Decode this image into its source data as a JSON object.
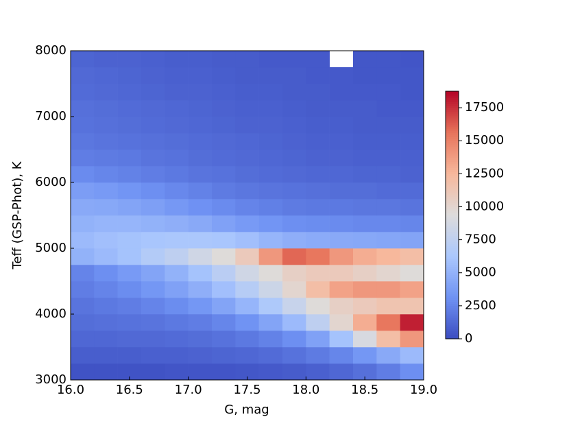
{
  "chart_data": {
    "type": "heatmap",
    "xlabel": "G, mag",
    "ylabel": "Teff (GSP-Phot), K",
    "x_bins": [
      16.0,
      16.2,
      16.4,
      16.6,
      16.8,
      17.0,
      17.2,
      17.4,
      17.6,
      17.8,
      18.0,
      18.2,
      18.4,
      18.6,
      18.8,
      19.0
    ],
    "y_bins": [
      3000,
      3250,
      3500,
      3750,
      4000,
      4250,
      4500,
      4750,
      5000,
      5250,
      5500,
      5750,
      6000,
      6250,
      6500,
      6750,
      7000,
      7250,
      7500,
      7750,
      8000
    ],
    "z": [
      [
        300,
        300,
        300,
        300,
        400,
        400,
        400,
        500,
        600,
        700,
        900,
        1200,
        1600,
        2200,
        3000
      ],
      [
        800,
        800,
        800,
        900,
        900,
        1000,
        1100,
        1200,
        1400,
        1700,
        2100,
        2600,
        3400,
        4500,
        5500
      ],
      [
        1200,
        1200,
        1300,
        1300,
        1400,
        1500,
        1700,
        2000,
        2400,
        3000,
        4000,
        6000,
        9000,
        12000,
        14000
      ],
      [
        1500,
        1600,
        1700,
        1800,
        2000,
        2200,
        2600,
        3200,
        4200,
        5500,
        7500,
        10000,
        13000,
        15500,
        18000
      ],
      [
        1800,
        2000,
        2200,
        2500,
        2900,
        3400,
        4200,
        5200,
        6500,
        8000,
        9500,
        10500,
        11000,
        11500,
        11500
      ],
      [
        2200,
        2500,
        2900,
        3400,
        4000,
        4800,
        5800,
        7000,
        8300,
        10000,
        12000,
        13500,
        14000,
        14000,
        13500
      ],
      [
        2500,
        3000,
        3600,
        4200,
        5000,
        6000,
        7200,
        8500,
        9500,
        10500,
        11000,
        11000,
        10500,
        10000,
        9500
      ],
      [
        5000,
        5500,
        6000,
        6800,
        7500,
        8500,
        9500,
        11000,
        14000,
        16000,
        15500,
        14000,
        13000,
        12500,
        12000
      ],
      [
        5500,
        5800,
        6000,
        6200,
        6300,
        6300,
        6200,
        5800,
        5200,
        4800,
        4600,
        4500,
        4400,
        4300,
        4200
      ],
      [
        5000,
        5200,
        5200,
        5000,
        4800,
        4500,
        4000,
        3600,
        3300,
        3000,
        2900,
        2800,
        2700,
        2700,
        2600
      ],
      [
        4500,
        4400,
        4200,
        3900,
        3500,
        3100,
        2800,
        2500,
        2300,
        2100,
        2000,
        2000,
        1900,
        1900,
        1800
      ],
      [
        3800,
        3600,
        3300,
        3000,
        2700,
        2400,
        2100,
        1900,
        1800,
        1700,
        1600,
        1500,
        1500,
        1400,
        1400
      ],
      [
        2800,
        2600,
        2400,
        2200,
        2000,
        1800,
        1700,
        1500,
        1400,
        1300,
        1200,
        1200,
        1100,
        1100,
        1000
      ],
      [
        2200,
        2100,
        2000,
        1800,
        1700,
        1500,
        1400,
        1300,
        1200,
        1100,
        1000,
        1000,
        900,
        900,
        900
      ],
      [
        1900,
        1800,
        1700,
        1600,
        1500,
        1400,
        1300,
        1200,
        1100,
        1000,
        900,
        900,
        800,
        800,
        800
      ],
      [
        1700,
        1600,
        1500,
        1400,
        1300,
        1200,
        1100,
        1000,
        1000,
        900,
        800,
        800,
        700,
        700,
        700
      ],
      [
        1600,
        1500,
        1400,
        1300,
        1200,
        1100,
        1000,
        900,
        900,
        800,
        700,
        700,
        700,
        600,
        600
      ],
      [
        1400,
        1300,
        1200,
        1100,
        1000,
        1000,
        900,
        800,
        800,
        700,
        700,
        600,
        600,
        600,
        500
      ],
      [
        1300,
        1200,
        1100,
        1000,
        900,
        900,
        800,
        700,
        700,
        700,
        600,
        600,
        500,
        500,
        500
      ],
      [
        1100,
        1000,
        1000,
        900,
        800,
        800,
        700,
        700,
        600,
        600,
        600,
        null,
        500,
        500,
        400
      ]
    ],
    "xlim": [
      16.0,
      19.0
    ],
    "xticks": [
      {
        "value": 16.0,
        "label": "16.0"
      },
      16.5,
      {
        "value": 17.0,
        "label": "17.0"
      },
      17.5,
      {
        "value": 18.0,
        "label": "18.0"
      },
      18.5,
      {
        "value": 19.0,
        "label": "19.0"
      }
    ],
    "ylim": [
      3000,
      8000
    ],
    "yticks": [
      3000,
      4000,
      5000,
      6000,
      7000,
      8000
    ],
    "zlim": [
      0,
      18750
    ],
    "zticks": [
      0,
      2500,
      5000,
      7500,
      10000,
      12500,
      15000,
      17500
    ],
    "colormap": [
      "#3b4cc0",
      "#6f92f3",
      "#aac7fd",
      "#dddcdc",
      "#f7b89c",
      "#e7745b",
      "#b40426"
    ]
  }
}
